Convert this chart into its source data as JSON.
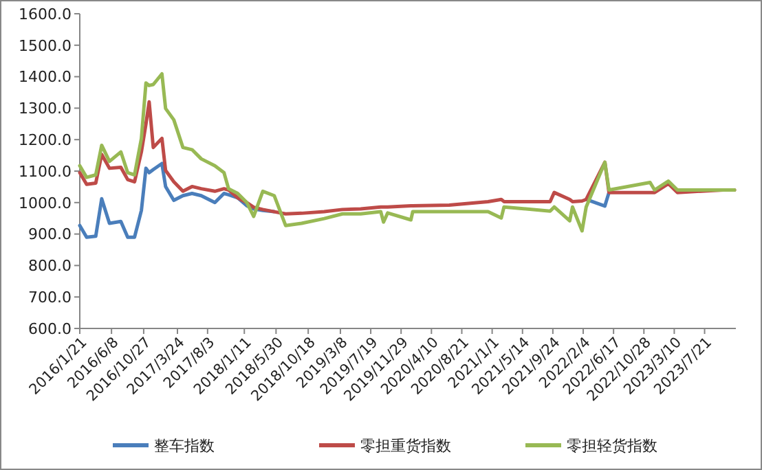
{
  "chart_data": {
    "type": "line",
    "legend": "bottom",
    "grid": false,
    "marker": "none",
    "line_style": "solid",
    "x": [
      "2016-01-21",
      "2016-02-20",
      "2016-03-31",
      "2016-04-26",
      "2016-05-30",
      "2016-07-19",
      "2016-08-18",
      "2016-09-17",
      "2016-10-17",
      "2016-11-06",
      "2016-11-20",
      "2016-12-08",
      "2017-01-15",
      "2017-01-31",
      "2017-03-08",
      "2017-04-17",
      "2017-05-27",
      "2017-07-06",
      "2017-09-04",
      "2017-10-14",
      "2017-11-03",
      "2017-12-13",
      "2018-01-22",
      "2018-02-21",
      "2018-04-02",
      "2018-05-22",
      "2018-07-11",
      "2018-09-19",
      "2018-12-27",
      "2019-03-17",
      "2019-06-05",
      "2019-09-01",
      "2019-09-13",
      "2019-10-01",
      "2020-01-11",
      "2020-01-19",
      "2020-06-27",
      "2020-12-14",
      "2021-02-10",
      "2021-02-22",
      "2021-09-12",
      "2021-09-30",
      "2021-12-07",
      "2021-12-19",
      "2022-01-30",
      "2022-02-17",
      "2022-05-10",
      "2022-05-28",
      "2022-11-24",
      "2022-12-14",
      "2023-02-12",
      "2023-03-24",
      "2023-10-10",
      "2023-11-29"
    ],
    "xlim": [
      "2016-01-21",
      "2023-12-05"
    ],
    "xticks": [
      {
        "value": "2016-01-21",
        "label": "2016/1/21"
      },
      {
        "value": "2016-06-08",
        "label": "2016/6/8"
      },
      {
        "value": "2016-10-27",
        "label": "2016/10/27"
      },
      {
        "value": "2017-03-24",
        "label": "2017/3/24"
      },
      {
        "value": "2017-08-03",
        "label": "2017/8/3"
      },
      {
        "value": "2018-01-11",
        "label": "2018/1/11"
      },
      {
        "value": "2018-05-30",
        "label": "2018/5/30"
      },
      {
        "value": "2018-10-18",
        "label": "2018/10/18"
      },
      {
        "value": "2019-03-08",
        "label": "2019/3/8"
      },
      {
        "value": "2019-07-19",
        "label": "2019/7/19"
      },
      {
        "value": "2019-11-29",
        "label": "2019/11/29"
      },
      {
        "value": "2020-04-10",
        "label": "2020/4/10"
      },
      {
        "value": "2020-08-21",
        "label": "2020/8/21"
      },
      {
        "value": "2021-01-01",
        "label": "2021/1/1"
      },
      {
        "value": "2021-05-14",
        "label": "2021/5/14"
      },
      {
        "value": "2021-09-24",
        "label": "2021/9/24"
      },
      {
        "value": "2022-02-04",
        "label": "2022/2/4"
      },
      {
        "value": "2022-06-17",
        "label": "2022/6/17"
      },
      {
        "value": "2022-10-28",
        "label": "2022/10/28"
      },
      {
        "value": "2023-03-10",
        "label": "2023/3/10"
      },
      {
        "value": "2023-07-21",
        "label": "2023/7/21"
      }
    ],
    "ylim": [
      600,
      1600
    ],
    "yticks": [
      {
        "value": 600,
        "label": "600.0"
      },
      {
        "value": 700,
        "label": "700.0"
      },
      {
        "value": 800,
        "label": "800.0"
      },
      {
        "value": 900,
        "label": "900.0"
      },
      {
        "value": 1000,
        "label": "1000.0"
      },
      {
        "value": 1100,
        "label": "1100.0"
      },
      {
        "value": 1200,
        "label": "1200.0"
      },
      {
        "value": 1300,
        "label": "1300.0"
      },
      {
        "value": 1400,
        "label": "1400.0"
      },
      {
        "value": 1500,
        "label": "1500.0"
      },
      {
        "value": 1600,
        "label": "1600.0"
      }
    ],
    "series": [
      {
        "name": "整车指数",
        "color": "#4a7ebb",
        "values": [
          927,
          890,
          893,
          1012,
          934,
          940,
          890,
          890,
          975,
          1109,
          1095,
          1105,
          1124,
          1051,
          1007,
          1022,
          1029,
          1022,
          1000,
          1029,
          1025,
          1015,
          990,
          980,
          975,
          971,
          null,
          null,
          null,
          null,
          null,
          null,
          null,
          null,
          null,
          null,
          null,
          null,
          null,
          null,
          null,
          null,
          null,
          null,
          null,
          1010,
          989,
          1032,
          null,
          null,
          null,
          null,
          null,
          null
        ]
      },
      {
        "name": "零担重货指数",
        "color": "#be4b48",
        "values": [
          1095,
          1058,
          1062,
          1153,
          1109,
          1112,
          1073,
          1066,
          1161,
          1250,
          1320,
          1175,
          1204,
          1102,
          1066,
          1036,
          1051,
          1044,
          1036,
          1044,
          1040,
          1015,
          1000,
          985,
          978,
          971,
          964,
          966,
          971,
          978,
          980,
          986,
          986,
          986,
          990,
          990,
          992,
          1003,
          1010,
          1003,
          1003,
          1032,
          1010,
          1003,
          1005,
          1010,
          1128,
          1032,
          1032,
          1032,
          1060,
          1032,
          1040,
          1040
        ]
      },
      {
        "name": "零担轻货指数",
        "color": "#98b954",
        "values": [
          1117,
          1080,
          1088,
          1182,
          1131,
          1161,
          1095,
          1088,
          1204,
          1380,
          1372,
          1375,
          1409,
          1299,
          1263,
          1175,
          1168,
          1139,
          1117,
          1095,
          1044,
          1029,
          1000,
          956,
          1036,
          1022,
          927,
          934,
          949,
          964,
          964,
          971,
          938,
          967,
          945,
          971,
          971,
          971,
          951,
          986,
          973,
          986,
          942,
          986,
          910,
          986,
          1128,
          1040,
          1064,
          1040,
          1068,
          1040,
          1040,
          1040
        ]
      }
    ]
  }
}
